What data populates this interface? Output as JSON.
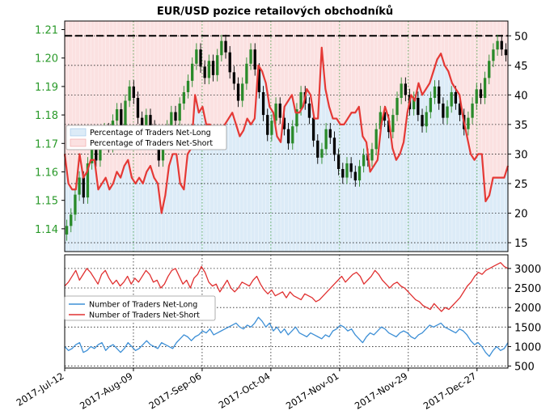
{
  "title": "EUR/USD pozice retailových obchodníků",
  "colors": {
    "long": "#3d8fd6",
    "short": "#e03030",
    "ratio": "#e53935",
    "candle_up": "#2a8a2a",
    "candle_down": "#000000",
    "long_fill": "#dcebf7",
    "short_fill": "#fbe1e1",
    "left_axis_text": "#2a9a2a"
  },
  "chart_data": [
    {
      "type": "line",
      "panel": "upper",
      "x_labels": [
        "2017-Jul-12",
        "2017-Aug-09",
        "2017-Sep-06",
        "2017-Oct-04",
        "2017-Nov-01",
        "2017-Nov-29",
        "2017-Dec-27"
      ],
      "left_axis": {
        "ticks": [
          1.14,
          1.15,
          1.16,
          1.17,
          1.18,
          1.19,
          1.2,
          1.21
        ],
        "ylim": [
          1.132,
          1.213
        ]
      },
      "right_axis": {
        "ticks": [
          15,
          20,
          25,
          30,
          35,
          40,
          45,
          50
        ],
        "ylim": [
          13.5,
          52.5
        ]
      },
      "reference_line": 50,
      "legend": {
        "placement": "center-left",
        "entries": [
          "Percentage of Traders Net-Long",
          "Percentage of Traders Net-Short"
        ]
      },
      "price_candles_close": [
        1.141,
        1.145,
        1.152,
        1.158,
        1.151,
        1.163,
        1.168,
        1.164,
        1.171,
        1.175,
        1.169,
        1.178,
        1.182,
        1.176,
        1.185,
        1.19,
        1.186,
        1.179,
        1.173,
        1.18,
        1.176,
        1.17,
        1.164,
        1.171,
        1.176,
        1.181,
        1.178,
        1.184,
        1.188,
        1.192,
        1.198,
        1.203,
        1.197,
        1.193,
        1.199,
        1.194,
        1.201,
        1.206,
        1.202,
        1.195,
        1.191,
        1.185,
        1.191,
        1.198,
        1.203,
        1.196,
        1.188,
        1.18,
        1.173,
        1.178,
        1.184,
        1.179,
        1.175,
        1.17,
        1.176,
        1.182,
        1.188,
        1.184,
        1.179,
        1.171,
        1.165,
        1.168,
        1.175,
        1.172,
        1.166,
        1.161,
        1.158,
        1.163,
        1.16,
        1.157,
        1.162,
        1.166,
        1.164,
        1.168,
        1.175,
        1.181,
        1.178,
        1.174,
        1.18,
        1.186,
        1.191,
        1.187,
        1.182,
        1.186,
        1.18,
        1.176,
        1.181,
        1.186,
        1.19,
        1.184,
        1.179,
        1.183,
        1.188,
        1.184,
        1.18,
        1.175,
        1.179,
        1.184,
        1.189,
        1.186,
        1.193,
        1.199,
        1.203,
        1.206,
        1.203,
        1.201
      ],
      "series": [
        {
          "axis": "right",
          "values": [
            30,
            25,
            24,
            24,
            30,
            26,
            27,
            29,
            29,
            24,
            25,
            26,
            24,
            25,
            27,
            26,
            28,
            29,
            26,
            25,
            26,
            25,
            27,
            28,
            26,
            25,
            20,
            23,
            28,
            30,
            30,
            25,
            24,
            30,
            31,
            40,
            37,
            38,
            35,
            35,
            34,
            34,
            33,
            35,
            36,
            37,
            35,
            33,
            34,
            36,
            35,
            36,
            45,
            44,
            42,
            38,
            37,
            33,
            32,
            38,
            39,
            40,
            37,
            37,
            38,
            41,
            40,
            36,
            36,
            48,
            41,
            38,
            36,
            36,
            35,
            35,
            36,
            37,
            37,
            38,
            33,
            32,
            27,
            28,
            29,
            35,
            38,
            36,
            31,
            29,
            30,
            32,
            37,
            40,
            39,
            42,
            40,
            41,
            42,
            44,
            46,
            47,
            45,
            44,
            42,
            41,
            40,
            36,
            33,
            30,
            29,
            30,
            30,
            22,
            23,
            26,
            26,
            26,
            26,
            28
          ]
        }
      ]
    },
    {
      "type": "line",
      "panel": "lower",
      "right_axis": {
        "ticks": [
          500,
          1000,
          1500,
          2000,
          2500,
          3000
        ],
        "ylim": [
          450,
          3350
        ]
      },
      "legend": {
        "placement": "center-left",
        "entries": [
          "Number of Traders Net-Long",
          "Number of Traders Net-Short"
        ]
      },
      "series": [
        {
          "name": "Number of Traders Net-Long",
          "values": [
            1000,
            900,
            950,
            1050,
            1100,
            850,
            900,
            1000,
            950,
            1050,
            1100,
            900,
            1000,
            1050,
            950,
            850,
            950,
            1100,
            1000,
            900,
            950,
            1050,
            1150,
            1050,
            1000,
            950,
            1100,
            1050,
            1000,
            950,
            1100,
            1200,
            1300,
            1250,
            1150,
            1250,
            1300,
            1400,
            1350,
            1450,
            1300,
            1350,
            1400,
            1450,
            1500,
            1550,
            1600,
            1500,
            1450,
            1550,
            1500,
            1600,
            1750,
            1650,
            1500,
            1600,
            1400,
            1500,
            1350,
            1450,
            1300,
            1400,
            1500,
            1350,
            1300,
            1250,
            1350,
            1300,
            1250,
            1200,
            1300,
            1250,
            1400,
            1450,
            1550,
            1500,
            1400,
            1450,
            1300,
            1200,
            1100,
            1250,
            1350,
            1300,
            1400,
            1500,
            1450,
            1350,
            1300,
            1250,
            1350,
            1400,
            1350,
            1250,
            1200,
            1300,
            1350,
            1450,
            1550,
            1500,
            1550,
            1600,
            1500,
            1450,
            1400,
            1350,
            1450,
            1400,
            1300,
            1150,
            1050,
            1100,
            1000,
            850,
            750,
            900,
            1000,
            900,
            950,
            1100
          ],
          "color": "#3d8fd6"
        },
        {
          "name": "Number of Traders Net-Short",
          "values": [
            2550,
            2650,
            2800,
            2950,
            2700,
            2850,
            3000,
            2900,
            2750,
            2600,
            2850,
            2950,
            2750,
            2600,
            2700,
            2550,
            2650,
            2800,
            2600,
            2750,
            2650,
            2800,
            2950,
            2850,
            2650,
            2700,
            2500,
            2600,
            2800,
            2950,
            3000,
            2800,
            2600,
            2700,
            2500,
            2750,
            2850,
            3050,
            2900,
            2650,
            2550,
            2600,
            2400,
            2550,
            2700,
            2500,
            2400,
            2500,
            2650,
            2600,
            2550,
            2700,
            2800,
            2600,
            2450,
            2350,
            2450,
            2300,
            2350,
            2400,
            2250,
            2400,
            2300,
            2250,
            2200,
            2350,
            2300,
            2250,
            2150,
            2200,
            2300,
            2400,
            2500,
            2600,
            2700,
            2800,
            2650,
            2750,
            2850,
            2900,
            2800,
            2600,
            2700,
            2800,
            2950,
            2850,
            2700,
            2600,
            2500,
            2600,
            2650,
            2550,
            2500,
            2400,
            2300,
            2200,
            2150,
            2050,
            2000,
            1950,
            2100,
            2000,
            1900,
            2000,
            1950,
            2050,
            2150,
            2250,
            2400,
            2550,
            2650,
            2800,
            2900,
            2850,
            2950,
            3000,
            3050,
            3100,
            3150,
            3050,
            3000
          ],
          "color": "#e03030"
        }
      ]
    }
  ]
}
